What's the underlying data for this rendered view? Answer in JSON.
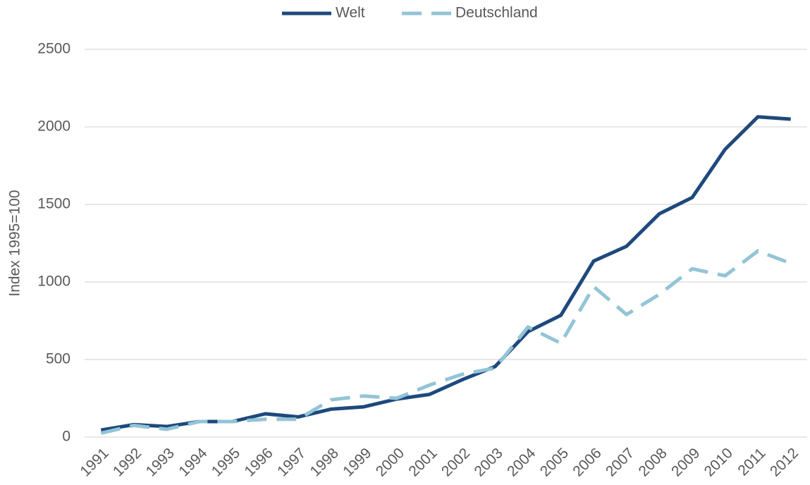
{
  "chart_data": {
    "type": "line",
    "categories": [
      "1991",
      "1992",
      "1993",
      "1994",
      "1995",
      "1996",
      "1997",
      "1998",
      "1999",
      "2000",
      "2001",
      "2002",
      "2003",
      "2004",
      "2005",
      "2006",
      "2007",
      "2008",
      "2009",
      "2010",
      "2011",
      "2012"
    ],
    "series": [
      {
        "name": "Welt",
        "color": "#1f497d",
        "dash": "solid",
        "values": [
          45,
          80,
          68,
          100,
          100,
          150,
          130,
          180,
          195,
          245,
          275,
          370,
          455,
          680,
          785,
          1135,
          1230,
          1440,
          1545,
          1855,
          2065,
          2050
        ]
      },
      {
        "name": "Deutschland",
        "color": "#93c4d6",
        "dash": "dashed",
        "values": [
          25,
          75,
          50,
          100,
          100,
          115,
          115,
          240,
          265,
          250,
          335,
          405,
          445,
          710,
          605,
          970,
          790,
          920,
          1085,
          1040,
          1200,
          1120
        ]
      }
    ],
    "y_label": "Index 1995=100",
    "ylim": [
      0,
      2500
    ],
    "yticks": [
      0,
      500,
      1000,
      1500,
      2000,
      2500
    ],
    "grid": true,
    "legend": "top"
  }
}
